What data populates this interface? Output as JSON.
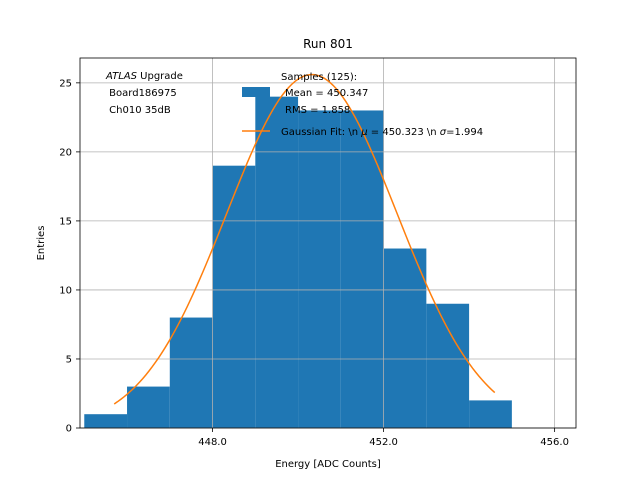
{
  "chart_data": {
    "type": "bar",
    "title": "Run 801",
    "xlabel": "Energy [ADC Counts]",
    "ylabel": "Entries",
    "xlim": [
      444.9,
      456.5
    ],
    "ylim": [
      0,
      26.8
    ],
    "grid": true,
    "x_ticks": [
      448.0,
      452.0,
      456.0
    ],
    "x_tick_labels": [
      "448.0",
      "452.0",
      "456.0"
    ],
    "y_ticks": [
      0,
      5,
      10,
      15,
      20,
      25
    ],
    "y_tick_labels": [
      "0",
      "5",
      "10",
      "15",
      "20",
      "25"
    ],
    "histogram": {
      "bin_edges": [
        445,
        446,
        447,
        448,
        449,
        450,
        451,
        452,
        453,
        454,
        455
      ],
      "counts": [
        1,
        3,
        8,
        19,
        24,
        23,
        23,
        13,
        9,
        2
      ],
      "color": "#1f77b4"
    },
    "fit": {
      "name": "Gaussian Fit: \\n $\\mu$ = 450.323 \\n $\\sigma$=1.994",
      "mu": 450.323,
      "sigma": 1.994,
      "amplitude": 25.6,
      "x_range": [
        445.7,
        454.6
      ],
      "color": "#ff7f0e"
    },
    "legend": {
      "placement": "top-right",
      "samples_title": "Samples (125):",
      "mean_text": "Mean = 450.347",
      "rms_text": "RMS = 1.858",
      "fit_text_prefix": "Gaussian Fit: \\n ",
      "fit_mu_symbol": "μ",
      "fit_mu_text": " = 450.323 \\n ",
      "fit_sigma_symbol": "σ",
      "fit_sigma_text": "=1.994"
    },
    "annotation": {
      "placement": "top-left",
      "atlas": "ATLAS",
      "upgrade": " Upgrade",
      "line2": " Board186975",
      "line3": " Ch010 35dB"
    }
  }
}
